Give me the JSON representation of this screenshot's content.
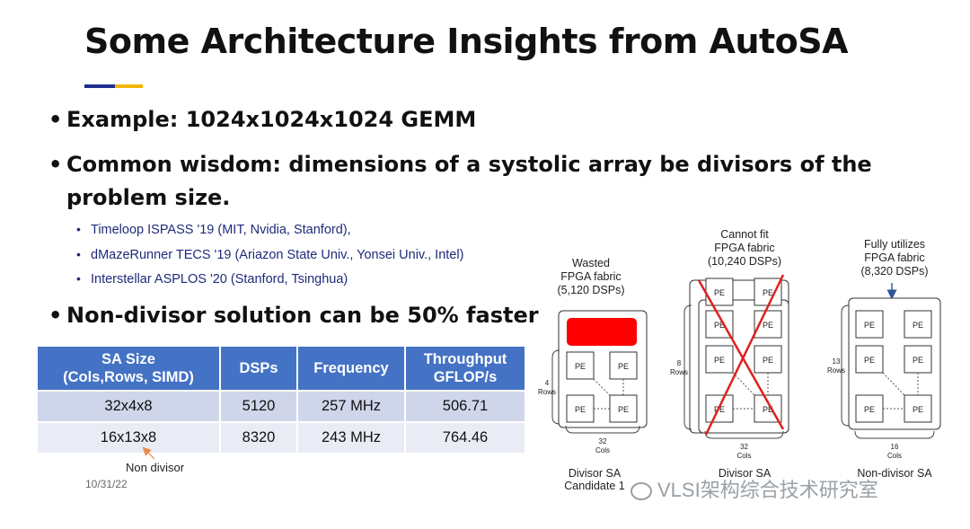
{
  "slide": {
    "title": "Some Architecture Insights from  AutoSA",
    "date": "10/31/22"
  },
  "bullets": {
    "b1": "Example: 1024x1024x1024 GEMM",
    "b2_line1": "Common wisdom: dimensions of a systolic array be divisors of the",
    "b2_line2": "problem size.",
    "b3": "Non-divisor solution can be 50% faster",
    "dot": "•"
  },
  "refs": [
    "Timeloop ISPASS '19 (MIT, Nvidia, Stanford),",
    "dMazeRunner TECS '19 (Ariazon State Univ., Yonsei Univ., Intel)",
    "Interstellar ASPLOS '20 (Stanford, Tsinghua)"
  ],
  "table": {
    "headers": [
      {
        "l1": "SA Size",
        "l2": "(Cols,Rows, SIMD)"
      },
      {
        "l1": "DSPs",
        "l2": ""
      },
      {
        "l1": "Frequency",
        "l2": ""
      },
      {
        "l1": "Throughput",
        "l2": "GFLOP/s"
      }
    ],
    "rows": [
      [
        "32x4x8",
        "5120",
        "257 MHz",
        "506.71"
      ],
      [
        "16x13x8",
        "8320",
        "243 MHz",
        "764.46"
      ]
    ]
  },
  "annotation": "Non divisor",
  "diagrams": [
    {
      "top_label": [
        "Wasted",
        "FPGA fabric",
        "(5,120 DSPs)"
      ],
      "rows_label": [
        "4",
        "Rows"
      ],
      "cols_label": [
        "32",
        "Cols"
      ],
      "caption": [
        "Divisor SA",
        "Candidate 1"
      ],
      "pe": "PE"
    },
    {
      "top_label": [
        "Cannot fit",
        "FPGA fabric",
        "(10,240 DSPs)"
      ],
      "rows_label": [
        "8",
        "Rows"
      ],
      "cols_label": [
        "32",
        "Cols"
      ],
      "caption": [
        "Divisor SA"
      ],
      "pe": "PE"
    },
    {
      "top_label": [
        "Fully utilizes",
        "FPGA fabric",
        "(8,320 DSPs)"
      ],
      "rows_label": [
        "13",
        "Rows"
      ],
      "cols_label": [
        "16",
        "Cols"
      ],
      "caption": [
        "Non-divisor SA"
      ],
      "pe": "PE"
    }
  ],
  "watermark": "VLSI架构综合技术研究室",
  "colors": {
    "title_accent_blue": "#1f2f8f",
    "title_accent_gold": "#f1b700",
    "table_header": "#4472c4",
    "reference_text": "#1f2a7a",
    "wasted_fabric": "#ff0000",
    "cross_out": "#e02020"
  }
}
